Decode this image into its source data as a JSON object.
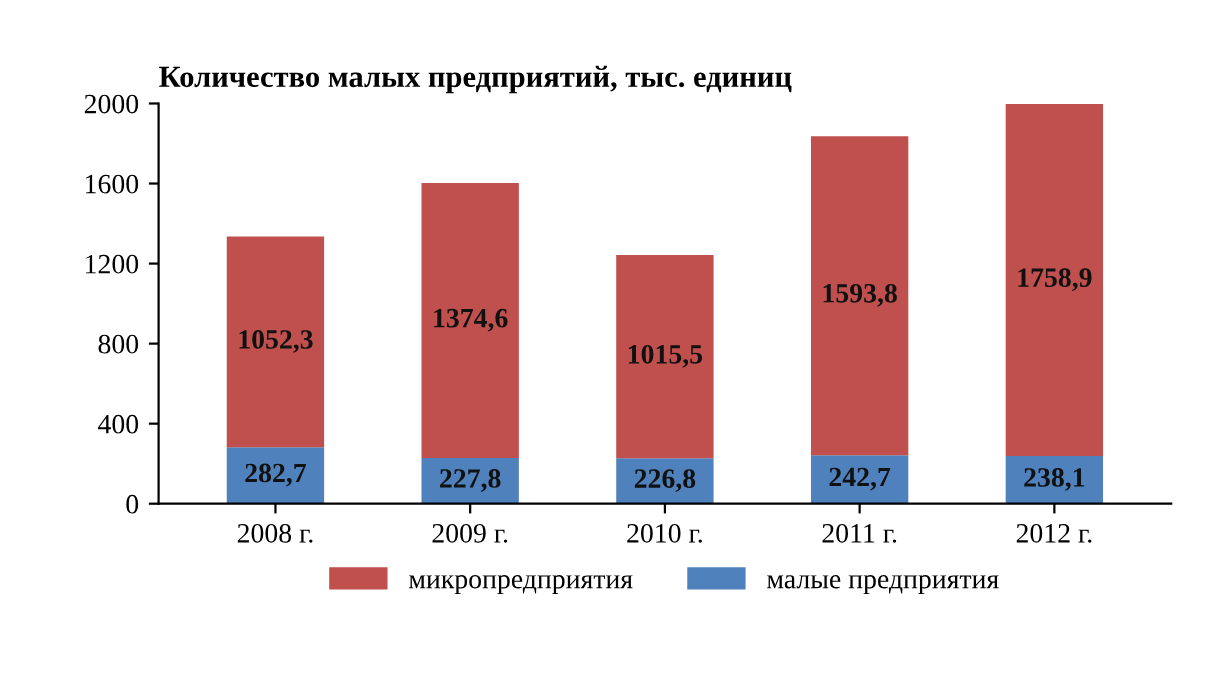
{
  "chart_data": {
    "type": "bar",
    "title": "Количество малых предприятий, тыс. единиц",
    "stacked": true,
    "categories": [
      "2008 г.",
      "2009 г.",
      "2010 г.",
      "2011 г.",
      "2012 г."
    ],
    "series": [
      {
        "name": "малые предприятия",
        "color": "#4f81bd",
        "values": [
          282.7,
          227.8,
          226.8,
          242.7,
          238.1
        ],
        "value_labels": [
          "282,7",
          "227,8",
          "226,8",
          "242,7",
          "238,1"
        ]
      },
      {
        "name": "микропредприятия",
        "color": "#c0504d",
        "values": [
          1052.3,
          1374.6,
          1015.5,
          1593.8,
          1758.9
        ],
        "value_labels": [
          "1052,3",
          "1374,6",
          "1015,5",
          "1593,8",
          "1758,9"
        ]
      }
    ],
    "ylim": [
      0,
      2000
    ],
    "yticks": [
      0,
      400,
      800,
      1200,
      1600,
      2000
    ],
    "legend": "bottom",
    "grid": false
  }
}
